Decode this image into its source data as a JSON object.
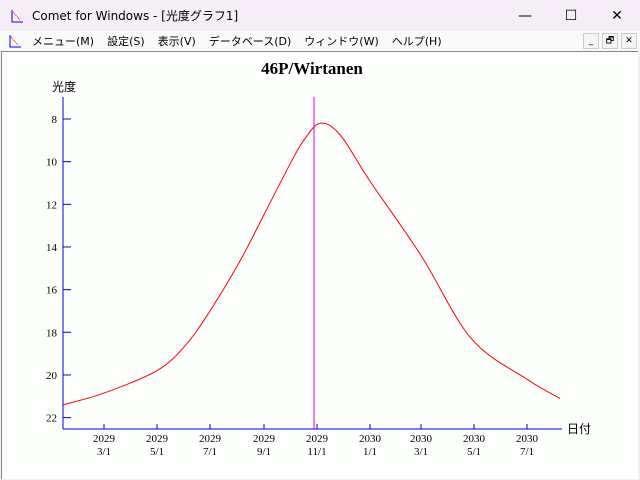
{
  "window": {
    "title": "Comet for Windows - [光度グラフ1]",
    "minimize": "—",
    "maximize": "☐",
    "close": "✕"
  },
  "menu": [
    "メニュー(M)",
    "設定(S)",
    "表示(V)",
    "データベース(D)",
    "ウィンドウ(W)",
    "ヘルプ(H)"
  ],
  "mdi_buttons": [
    "_",
    "🗗",
    "✕"
  ],
  "chart_data": {
    "type": "line",
    "title": "46P/Wirtanen",
    "ylabel": "光度",
    "xlabel": "日付",
    "ylim": [
      22.6,
      6.9
    ],
    "y_inverted": true,
    "yticks": [
      8,
      10,
      12,
      14,
      16,
      18,
      20,
      22
    ],
    "xticks": [
      {
        "date": "2029-03-01",
        "year": "2029",
        "md": "3/1"
      },
      {
        "date": "2029-05-01",
        "year": "2029",
        "md": "5/1"
      },
      {
        "date": "2029-07-01",
        "year": "2029",
        "md": "7/1"
      },
      {
        "date": "2029-09-01",
        "year": "2029",
        "md": "9/1"
      },
      {
        "date": "2029-11-01",
        "year": "2029",
        "md": "11/1"
      },
      {
        "date": "2030-01-01",
        "year": "2030",
        "md": "1/1"
      },
      {
        "date": "2030-03-01",
        "year": "2030",
        "md": "3/1"
      },
      {
        "date": "2030-05-01",
        "year": "2030",
        "md": "5/1"
      },
      {
        "date": "2030-07-01",
        "year": "2030",
        "md": "7/1"
      }
    ],
    "xlim": [
      "2029-01-13",
      "2030-08-30"
    ],
    "marker_date": "2029-10-29",
    "series": [
      {
        "color": "#ff0000",
        "points": [
          [
            "2029-01-13",
            21.4
          ],
          [
            "2029-03-01",
            20.85
          ],
          [
            "2029-05-01",
            19.8
          ],
          [
            "2029-06-03",
            18.6
          ],
          [
            "2029-07-01",
            17.0
          ],
          [
            "2029-08-04",
            14.7
          ],
          [
            "2029-09-01",
            12.5
          ],
          [
            "2029-09-30",
            10.2
          ],
          [
            "2029-10-17",
            9.0
          ],
          [
            "2029-11-05",
            8.2
          ],
          [
            "2029-11-28",
            8.75
          ],
          [
            "2030-01-01",
            10.9
          ],
          [
            "2030-03-01",
            14.4
          ],
          [
            "2030-04-28",
            18.3
          ],
          [
            "2030-07-01",
            20.2
          ],
          [
            "2030-08-08",
            21.1
          ]
        ]
      }
    ],
    "colors": {
      "axis": "#0000e0",
      "marker": "#e000e0",
      "curve": "#ff0000"
    }
  }
}
